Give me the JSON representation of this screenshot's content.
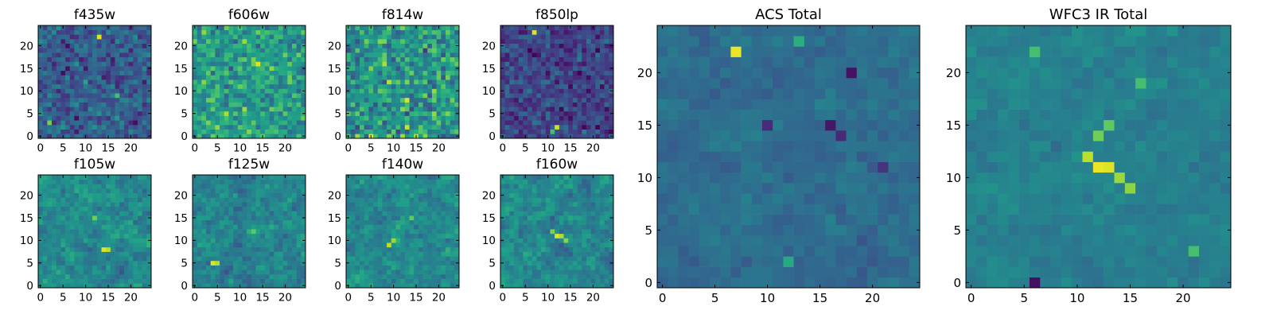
{
  "colormap": {
    "name": "viridis",
    "stops": [
      "#440154",
      "#482878",
      "#3e4989",
      "#31688e",
      "#26828e",
      "#1f9e89",
      "#35b779",
      "#6ece58",
      "#b5de2b",
      "#fde725"
    ]
  },
  "chart_data": [
    {
      "type": "heatmap",
      "title": "f435w",
      "grid_size": 25,
      "xticks": [
        0,
        5,
        10,
        15,
        20
      ],
      "yticks": [
        0,
        5,
        10,
        15,
        20
      ],
      "xlim": [
        0,
        24
      ],
      "ylim": [
        0,
        24
      ],
      "value_range": [
        0,
        1
      ],
      "mean_level": 0.3,
      "spread": 0.14,
      "hotspots": [
        {
          "x": 13,
          "y": 22,
          "v": 0.95
        },
        {
          "x": 2,
          "y": 3,
          "v": 0.78
        },
        {
          "x": 17,
          "y": 9,
          "v": 0.7
        },
        {
          "x": 14,
          "y": 13,
          "v": 0.08
        }
      ]
    },
    {
      "type": "heatmap",
      "title": "f606w",
      "grid_size": 25,
      "xticks": [
        0,
        5,
        10,
        15,
        20
      ],
      "yticks": [
        0,
        5,
        10,
        15,
        20
      ],
      "xlim": [
        0,
        24
      ],
      "ylim": [
        0,
        24
      ],
      "value_range": [
        0,
        1
      ],
      "mean_level": 0.55,
      "spread": 0.16,
      "hotspots": [
        {
          "x": 14,
          "y": 16,
          "v": 0.95
        },
        {
          "x": 7,
          "y": 5,
          "v": 0.88
        },
        {
          "x": 11,
          "y": 21,
          "v": 0.85
        },
        {
          "x": 12,
          "y": 1,
          "v": 0.82
        }
      ]
    },
    {
      "type": "heatmap",
      "title": "f814w",
      "grid_size": 25,
      "xticks": [
        0,
        5,
        10,
        15,
        20
      ],
      "yticks": [
        0,
        5,
        10,
        15,
        20
      ],
      "xlim": [
        0,
        24
      ],
      "ylim": [
        0,
        24
      ],
      "value_range": [
        0,
        1
      ],
      "mean_level": 0.52,
      "spread": 0.2,
      "hotspots": [
        {
          "x": 13,
          "y": 8,
          "v": 0.95
        },
        {
          "x": 9,
          "y": 12,
          "v": 0.9
        },
        {
          "x": 13,
          "y": 2,
          "v": 0.92
        },
        {
          "x": 5,
          "y": 0,
          "v": 0.95
        }
      ]
    },
    {
      "type": "heatmap",
      "title": "f850lp",
      "grid_size": 25,
      "xticks": [
        0,
        5,
        10,
        15,
        20
      ],
      "yticks": [
        0,
        5,
        10,
        15,
        20
      ],
      "xlim": [
        0,
        24
      ],
      "ylim": [
        0,
        24
      ],
      "value_range": [
        0,
        1
      ],
      "mean_level": 0.2,
      "spread": 0.12,
      "hotspots": [
        {
          "x": 7,
          "y": 23,
          "v": 0.95
        },
        {
          "x": 12,
          "y": 2,
          "v": 0.92
        },
        {
          "x": 11,
          "y": 1,
          "v": 0.7
        }
      ]
    },
    {
      "type": "heatmap",
      "title": "f105w",
      "grid_size": 25,
      "xticks": [
        0,
        5,
        10,
        15,
        20
      ],
      "yticks": [
        0,
        5,
        10,
        15,
        20
      ],
      "xlim": [
        0,
        24
      ],
      "ylim": [
        0,
        24
      ],
      "value_range": [
        0,
        1
      ],
      "mean_level": 0.48,
      "spread": 0.16,
      "hotspots": [
        {
          "x": 14,
          "y": 8,
          "v": 0.95
        },
        {
          "x": 15,
          "y": 8,
          "v": 0.9
        },
        {
          "x": 12,
          "y": 15,
          "v": 0.78
        }
      ]
    },
    {
      "type": "heatmap",
      "title": "f125w",
      "grid_size": 25,
      "xticks": [
        0,
        5,
        10,
        15,
        20
      ],
      "yticks": [
        0,
        5,
        10,
        15,
        20
      ],
      "xlim": [
        0,
        24
      ],
      "ylim": [
        0,
        24
      ],
      "value_range": [
        0,
        1
      ],
      "mean_level": 0.45,
      "spread": 0.16,
      "hotspots": [
        {
          "x": 4,
          "y": 5,
          "v": 0.95
        },
        {
          "x": 5,
          "y": 5,
          "v": 0.88
        },
        {
          "x": 13,
          "y": 12,
          "v": 0.75
        }
      ]
    },
    {
      "type": "heatmap",
      "title": "f140w",
      "grid_size": 25,
      "xticks": [
        0,
        5,
        10,
        15,
        20
      ],
      "yticks": [
        0,
        5,
        10,
        15,
        20
      ],
      "xlim": [
        0,
        24
      ],
      "ylim": [
        0,
        24
      ],
      "value_range": [
        0,
        1
      ],
      "mean_level": 0.47,
      "spread": 0.15,
      "hotspots": [
        {
          "x": 9,
          "y": 9,
          "v": 0.9
        },
        {
          "x": 10,
          "y": 10,
          "v": 0.85
        },
        {
          "x": 14,
          "y": 15,
          "v": 0.75
        }
      ]
    },
    {
      "type": "heatmap",
      "title": "f160w",
      "grid_size": 25,
      "xticks": [
        0,
        5,
        10,
        15,
        20
      ],
      "yticks": [
        0,
        5,
        10,
        15,
        20
      ],
      "xlim": [
        0,
        24
      ],
      "ylim": [
        0,
        24
      ],
      "value_range": [
        0,
        1
      ],
      "mean_level": 0.46,
      "spread": 0.15,
      "hotspots": [
        {
          "x": 12,
          "y": 11,
          "v": 0.95
        },
        {
          "x": 13,
          "y": 11,
          "v": 0.88
        },
        {
          "x": 11,
          "y": 12,
          "v": 0.8
        },
        {
          "x": 14,
          "y": 10,
          "v": 0.82
        }
      ]
    },
    {
      "type": "heatmap",
      "title": "ACS Total",
      "grid_size": 25,
      "xticks": [
        0,
        5,
        10,
        15,
        20
      ],
      "yticks": [
        0,
        5,
        10,
        15,
        20
      ],
      "xlim": [
        0,
        24
      ],
      "ylim": [
        0,
        24
      ],
      "value_range": [
        0,
        1
      ],
      "mean_level": 0.36,
      "spread": 0.08,
      "hotspots": [
        {
          "x": 7,
          "y": 22,
          "v": 0.97
        },
        {
          "x": 13,
          "y": 23,
          "v": 0.62
        },
        {
          "x": 18,
          "y": 20,
          "v": 0.05
        },
        {
          "x": 16,
          "y": 15,
          "v": 0.06
        },
        {
          "x": 17,
          "y": 14,
          "v": 0.12
        },
        {
          "x": 21,
          "y": 11,
          "v": 0.15
        },
        {
          "x": 10,
          "y": 15,
          "v": 0.12
        },
        {
          "x": 12,
          "y": 2,
          "v": 0.6
        }
      ]
    },
    {
      "type": "heatmap",
      "title": "WFC3 IR Total",
      "grid_size": 25,
      "xticks": [
        0,
        5,
        10,
        15,
        20
      ],
      "yticks": [
        0,
        5,
        10,
        15,
        20
      ],
      "xlim": [
        0,
        24
      ],
      "ylim": [
        0,
        24
      ],
      "value_range": [
        0,
        1
      ],
      "mean_level": 0.44,
      "spread": 0.08,
      "hotspots": [
        {
          "x": 12,
          "y": 11,
          "v": 0.97
        },
        {
          "x": 13,
          "y": 11,
          "v": 0.95
        },
        {
          "x": 11,
          "y": 12,
          "v": 0.9
        },
        {
          "x": 14,
          "y": 10,
          "v": 0.85
        },
        {
          "x": 15,
          "y": 9,
          "v": 0.82
        },
        {
          "x": 12,
          "y": 14,
          "v": 0.78
        },
        {
          "x": 13,
          "y": 15,
          "v": 0.75
        },
        {
          "x": 6,
          "y": 22,
          "v": 0.7
        },
        {
          "x": 16,
          "y": 19,
          "v": 0.7
        },
        {
          "x": 6,
          "y": 0,
          "v": 0.04
        },
        {
          "x": 21,
          "y": 3,
          "v": 0.7
        }
      ]
    }
  ]
}
